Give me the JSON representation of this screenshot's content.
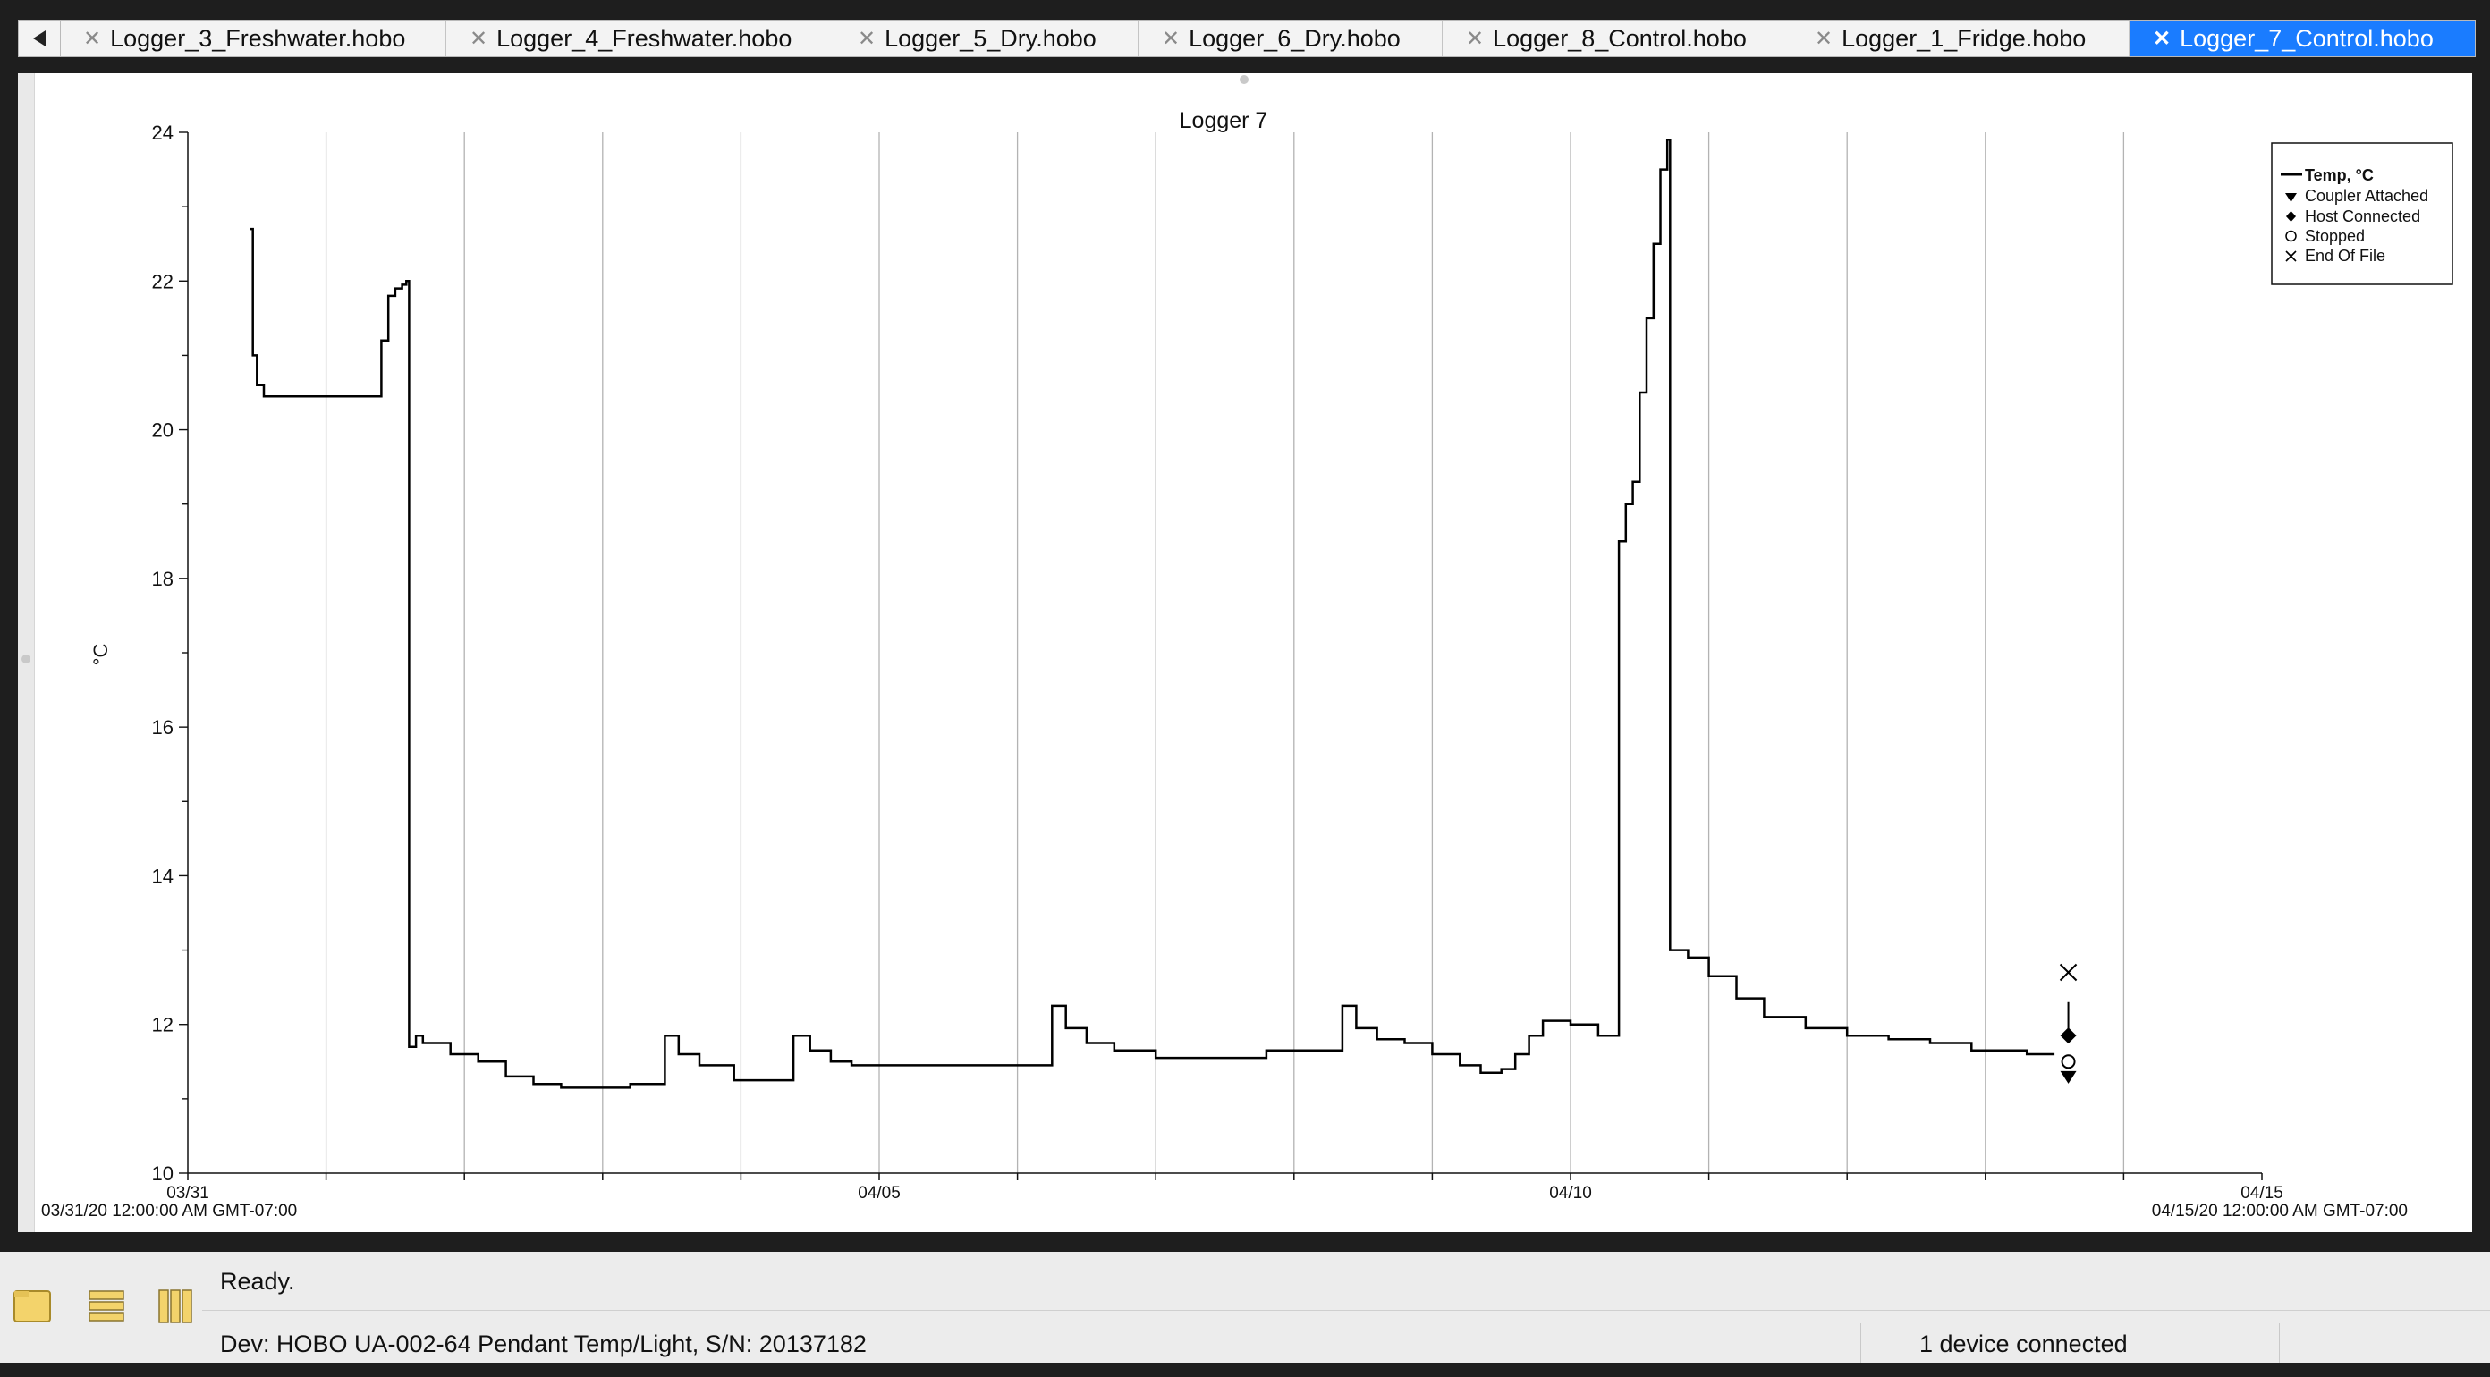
{
  "tabs": [
    {
      "label": "Logger_3_Freshwater.hobo",
      "active": false
    },
    {
      "label": "Logger_4_Freshwater.hobo",
      "active": false
    },
    {
      "label": "Logger_5_Dry.hobo",
      "active": false
    },
    {
      "label": "Logger_6_Dry.hobo",
      "active": false
    },
    {
      "label": "Logger_8_Control.hobo",
      "active": false
    },
    {
      "label": "Logger_1_Fridge.hobo",
      "active": false
    },
    {
      "label": "Logger_7_Control.hobo",
      "active": true
    }
  ],
  "icons": {
    "back": "triangle-left-icon",
    "tab_close": "close-tab-icon",
    "status": [
      "folder-icon",
      "rows-view-icon",
      "columns-view-icon"
    ]
  },
  "colors": {
    "active_tab": "#1a7cff",
    "series": "#000000"
  },
  "status": {
    "message": "Ready.",
    "device": "Dev: HOBO UA-002-64 Pendant Temp/Light, S/N: 20137182",
    "connected": "1 device connected"
  },
  "chart_data": {
    "type": "line",
    "title": "Logger 7",
    "ylabel": "°C",
    "xlabel": "",
    "ylim": [
      10,
      24
    ],
    "xlim": [
      "03/31",
      "04/15"
    ],
    "y_ticks": [
      "10",
      "12",
      "14",
      "16",
      "18",
      "20",
      "22",
      "24"
    ],
    "x_ticks": [
      "03/31",
      "04/05",
      "04/10",
      "04/15"
    ],
    "x_range_start": "03/31/20 12:00:00 AM GMT-07:00",
    "x_range_end": "04/15/20 12:00:00 AM GMT-07:00",
    "grid": "vertical",
    "legend_position": "top-right",
    "legend": [
      "Temp, °C",
      "Coupler Attached",
      "Host Connected",
      "Stopped",
      "End Of File"
    ],
    "series": [
      {
        "name": "Temp, °C",
        "points": [
          [
            0.45,
            22.7
          ],
          [
            0.47,
            21.0
          ],
          [
            0.5,
            20.6
          ],
          [
            0.55,
            20.45
          ],
          [
            0.7,
            20.45
          ],
          [
            0.9,
            20.45
          ],
          [
            1.0,
            20.45
          ],
          [
            1.1,
            20.45
          ],
          [
            1.35,
            20.45
          ],
          [
            1.4,
            21.2
          ],
          [
            1.45,
            21.8
          ],
          [
            1.5,
            21.9
          ],
          [
            1.55,
            21.95
          ],
          [
            1.58,
            22.0
          ],
          [
            1.6,
            11.7
          ],
          [
            1.65,
            11.85
          ],
          [
            1.7,
            11.75
          ],
          [
            1.9,
            11.6
          ],
          [
            2.1,
            11.5
          ],
          [
            2.3,
            11.3
          ],
          [
            2.5,
            11.2
          ],
          [
            2.7,
            11.15
          ],
          [
            3.0,
            11.15
          ],
          [
            3.2,
            11.2
          ],
          [
            3.4,
            11.2
          ],
          [
            3.45,
            11.85
          ],
          [
            3.55,
            11.6
          ],
          [
            3.7,
            11.45
          ],
          [
            3.95,
            11.25
          ],
          [
            4.2,
            11.25
          ],
          [
            4.35,
            11.25
          ],
          [
            4.38,
            11.85
          ],
          [
            4.5,
            11.65
          ],
          [
            4.65,
            11.5
          ],
          [
            4.8,
            11.45
          ],
          [
            5.2,
            11.45
          ],
          [
            5.6,
            11.45
          ],
          [
            6.0,
            11.45
          ],
          [
            6.2,
            11.45
          ],
          [
            6.25,
            12.25
          ],
          [
            6.35,
            11.95
          ],
          [
            6.5,
            11.75
          ],
          [
            6.7,
            11.65
          ],
          [
            7.0,
            11.55
          ],
          [
            7.6,
            11.55
          ],
          [
            7.8,
            11.65
          ],
          [
            8.3,
            11.65
          ],
          [
            8.35,
            12.25
          ],
          [
            8.45,
            11.95
          ],
          [
            8.6,
            11.8
          ],
          [
            8.8,
            11.75
          ],
          [
            9.0,
            11.6
          ],
          [
            9.2,
            11.45
          ],
          [
            9.35,
            11.35
          ],
          [
            9.5,
            11.4
          ],
          [
            9.6,
            11.6
          ],
          [
            9.7,
            11.85
          ],
          [
            9.8,
            12.05
          ],
          [
            9.95,
            12.05
          ],
          [
            10.0,
            12.0
          ],
          [
            10.2,
            11.85
          ],
          [
            10.3,
            11.85
          ],
          [
            10.35,
            18.5
          ],
          [
            10.4,
            19.0
          ],
          [
            10.45,
            19.3
          ],
          [
            10.5,
            20.5
          ],
          [
            10.55,
            21.5
          ],
          [
            10.6,
            22.5
          ],
          [
            10.65,
            23.5
          ],
          [
            10.7,
            23.9
          ],
          [
            10.72,
            13.0
          ],
          [
            10.85,
            12.9
          ],
          [
            11.0,
            12.65
          ],
          [
            11.2,
            12.35
          ],
          [
            11.4,
            12.1
          ],
          [
            11.7,
            11.95
          ],
          [
            12.0,
            11.85
          ],
          [
            12.3,
            11.8
          ],
          [
            12.6,
            11.75
          ],
          [
            12.9,
            11.65
          ],
          [
            13.3,
            11.6
          ],
          [
            13.5,
            11.6
          ]
        ]
      }
    ],
    "events": [
      {
        "name": "End Of File",
        "x": 13.6,
        "y": 12.7
      },
      {
        "name": "Host Connected",
        "x": 13.6,
        "y": 11.85
      },
      {
        "name": "Stopped",
        "x": 13.6,
        "y": 11.5
      },
      {
        "name": "Coupler Attached",
        "x": 13.6,
        "y": 11.3
      }
    ]
  }
}
